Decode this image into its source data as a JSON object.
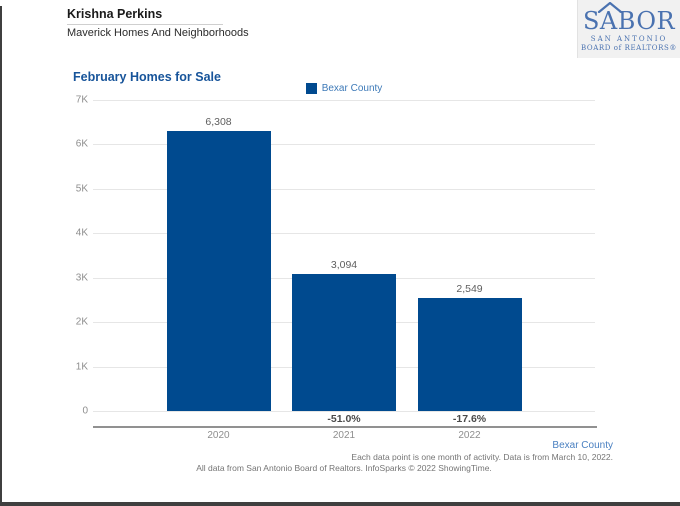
{
  "header": {
    "agent_name": "Krishna Perkins",
    "company": "Maverick Homes And Neighborhoods"
  },
  "logo": {
    "part1": "S",
    "part2": "A",
    "part3": "BOR",
    "line1": "SAN ANTONIO",
    "line2": "BOARD of REALTORS®",
    "color": "#4a72b0"
  },
  "chart": {
    "title": "February Homes for Sale",
    "legend_label": "Bexar County"
  },
  "chart_data": {
    "type": "bar",
    "title": "February Homes for Sale",
    "categories": [
      "2020",
      "2021",
      "2022"
    ],
    "series": [
      {
        "name": "Bexar County",
        "values": [
          6308,
          3094,
          2549
        ]
      }
    ],
    "value_labels": [
      "6,308",
      "3,094",
      "2,549"
    ],
    "pct_change_labels": [
      "",
      "-51.0%",
      "-17.6%"
    ],
    "xlabel": "",
    "ylabel": "",
    "ylim": [
      0,
      7000
    ],
    "yticks": [
      "7K",
      "6K",
      "5K",
      "4K",
      "3K",
      "2K",
      "1K",
      "0"
    ],
    "bar_color": "#004a8f",
    "grid": true,
    "legend_position": "top-center"
  },
  "footer": {
    "series_label": "Bexar County",
    "note_right": "Each data point is one month of activity. Data is from March 10, 2022.",
    "note_center": "All data from San Antonio Board of Realtors. InfoSparks © 2022 ShowingTime."
  }
}
